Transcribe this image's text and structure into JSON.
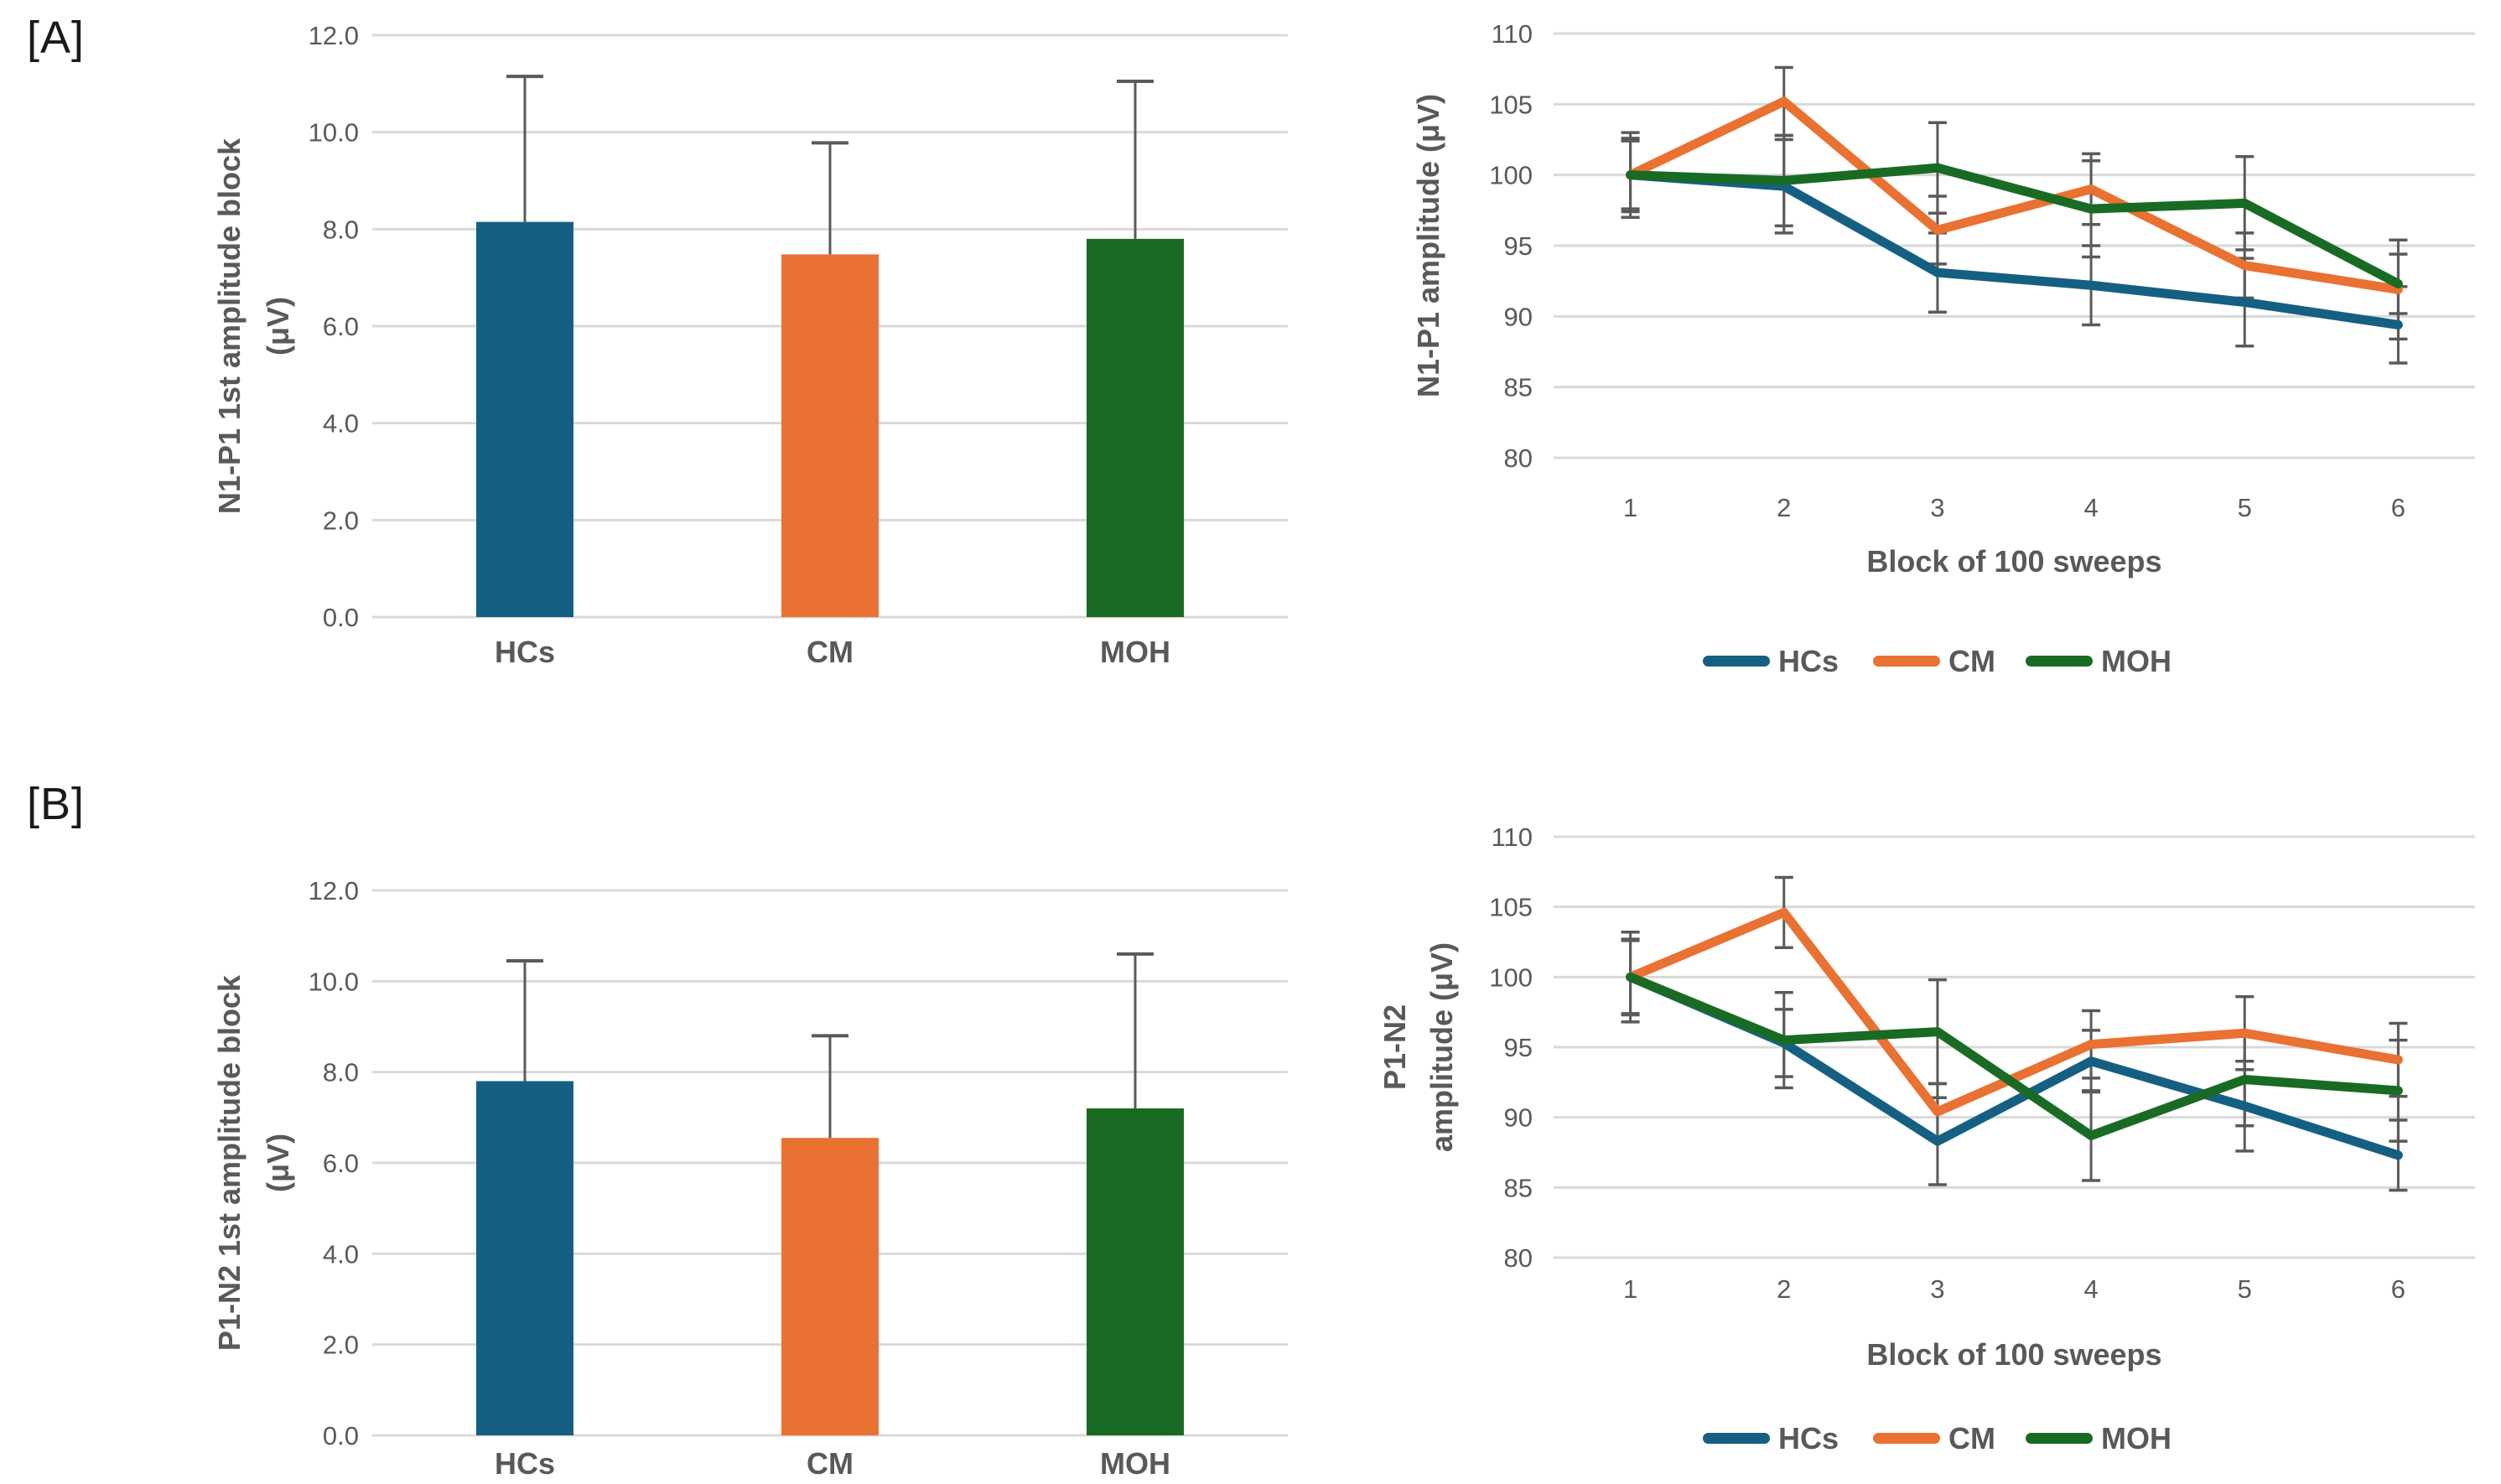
{
  "figure": {
    "panel_a_label": "[A]",
    "panel_b_label": "[B]"
  },
  "colors": {
    "hcs": "#156082",
    "cm": "#E97132",
    "moh": "#196B24",
    "gridline": "#D9D9D9",
    "tick_text": "#595959",
    "axis_text": "#595959",
    "error_bar": "#5A5A5A",
    "background": "#FFFFFF"
  },
  "chart_data": [
    {
      "id": "n1p1-bar",
      "panel": "A",
      "type": "bar",
      "ylabel_lines": [
        "N1-P1 1st amplitude block",
        "(μV)"
      ],
      "categories": [
        "HCs",
        "CM",
        "MOH"
      ],
      "series": [
        {
          "name": "HCs",
          "color": "hcs",
          "value": 8.15,
          "err_up": 3.0
        },
        {
          "name": "CM",
          "color": "cm",
          "value": 7.48,
          "err_up": 2.3
        },
        {
          "name": "MOH",
          "color": "moh",
          "value": 7.8,
          "err_up": 3.25
        }
      ],
      "ylim": [
        0,
        12
      ],
      "ytick_labels": [
        "12.0",
        "10.0",
        "8.0",
        "6.0",
        "4.0",
        "2.0",
        "0.0"
      ],
      "grid": true,
      "legend_position": "none"
    },
    {
      "id": "n1p1-line",
      "panel": "A",
      "type": "line",
      "ylabel_lines": [
        "N1-P1 amplitude (μV)"
      ],
      "xlabel": "Block of 100 sweeps",
      "x_labels": [
        "1",
        "2",
        "3",
        "4",
        "5",
        "6"
      ],
      "ylim": [
        80,
        110
      ],
      "ytick_labels": [
        "110",
        "105",
        "100",
        "95",
        "90",
        "85",
        "80"
      ],
      "grid": true,
      "legend_position": "bottom",
      "legend": [
        "HCs",
        "CM",
        "MOH"
      ],
      "series": [
        {
          "name": "HCs",
          "color": "hcs",
          "values": [
            100,
            99.2,
            93.1,
            92.2,
            91.0,
            89.4
          ],
          "err": [
            3.0,
            3.3,
            2.8,
            2.8,
            3.1,
            2.7
          ]
        },
        {
          "name": "CM",
          "color": "cm",
          "values": [
            100,
            105.2,
            96.1,
            99.0,
            93.6,
            91.9
          ],
          "err": [
            2.4,
            2.4,
            2.4,
            2.5,
            2.3,
            3.5
          ]
        },
        {
          "name": "MOH",
          "color": "moh",
          "values": [
            100,
            99.6,
            100.5,
            97.6,
            98.0,
            92.3
          ],
          "err": [
            2.6,
            3.2,
            3.2,
            3.4,
            3.3,
            2.1
          ]
        }
      ]
    },
    {
      "id": "p1n2-bar",
      "panel": "B",
      "type": "bar",
      "ylabel_lines": [
        "P1-N2 1st amplitude block",
        "(μV)"
      ],
      "categories": [
        "HCs",
        "CM",
        "MOH"
      ],
      "series": [
        {
          "name": "HCs",
          "color": "hcs",
          "value": 7.8,
          "err_up": 2.65
        },
        {
          "name": "CM",
          "color": "cm",
          "value": 6.55,
          "err_up": 2.25
        },
        {
          "name": "MOH",
          "color": "moh",
          "value": 7.2,
          "err_up": 3.4
        }
      ],
      "ylim": [
        0,
        12
      ],
      "ytick_labels": [
        "12.0",
        "10.0",
        "8.0",
        "6.0",
        "4.0",
        "2.0",
        "0.0"
      ],
      "grid": true,
      "legend_position": "none"
    },
    {
      "id": "p1n2-line",
      "panel": "B",
      "type": "line",
      "ylabel_lines": [
        "P1-N2",
        "amplitude (μV)"
      ],
      "xlabel": "Block of 100 sweeps",
      "x_labels": [
        "1",
        "2",
        "3",
        "4",
        "5",
        "6"
      ],
      "ylim": [
        80,
        110
      ],
      "ytick_labels": [
        "110",
        "105",
        "100",
        "95",
        "90",
        "85",
        "80"
      ],
      "grid": true,
      "legend_position": "bottom",
      "legend": [
        "HCs",
        "CM",
        "MOH"
      ],
      "series": [
        {
          "name": "HCs",
          "color": "hcs",
          "values": [
            100,
            95.3,
            88.3,
            94.0,
            90.8,
            87.3
          ],
          "err": [
            2.7,
            2.4,
            3.1,
            2.2,
            3.2,
            2.5
          ]
        },
        {
          "name": "CM",
          "color": "cm",
          "values": [
            100,
            104.6,
            90.4,
            95.2,
            96.0,
            94.1
          ],
          "err": [
            2.6,
            2.5,
            2.0,
            2.4,
            2.6,
            2.6
          ]
        },
        {
          "name": "MOH",
          "color": "moh",
          "values": [
            100,
            95.5,
            96.1,
            88.7,
            92.7,
            91.9
          ],
          "err": [
            3.2,
            3.4,
            3.7,
            3.2,
            3.3,
            3.6
          ]
        }
      ]
    }
  ]
}
